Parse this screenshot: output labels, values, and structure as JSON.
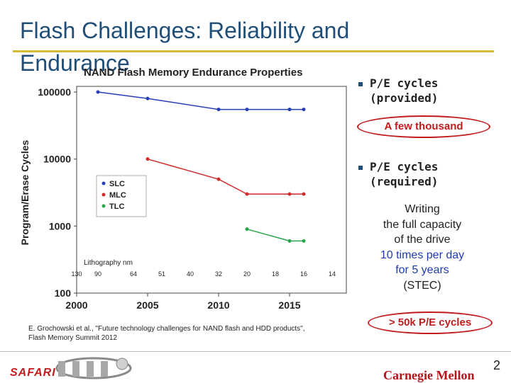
{
  "slide": {
    "title": "Flash Challenges: Reliability and Endurance",
    "page_number": "2"
  },
  "chart_data": {
    "type": "line",
    "title": "NAND Flash Memory Endurance Properties",
    "ylabel": "Program/Erase Cycles",
    "xlabel": "",
    "y_scale": "log",
    "ylim": [
      100,
      100000
    ],
    "xlim": [
      2000,
      2019
    ],
    "y_ticks": [
      "100",
      "1000",
      "10000",
      "100000"
    ],
    "x_ticks": [
      "2000",
      "2005",
      "2010",
      "2015"
    ],
    "lithography_label": "Lithography nm",
    "lithography_ticks": [
      {
        "x": 2000,
        "label": "130"
      },
      {
        "x": 2001.5,
        "label": "90"
      },
      {
        "x": 2004,
        "label": "64"
      },
      {
        "x": 2006,
        "label": "51"
      },
      {
        "x": 2008,
        "label": "40"
      },
      {
        "x": 2010,
        "label": "32"
      },
      {
        "x": 2012,
        "label": "20"
      },
      {
        "x": 2014,
        "label": "18"
      },
      {
        "x": 2016,
        "label": "16"
      },
      {
        "x": 2018,
        "label": "14"
      }
    ],
    "series": [
      {
        "name": "SLC",
        "color": "#2a3fb5",
        "x": [
          2001.5,
          2005,
          2010,
          2012,
          2015,
          2016
        ],
        "y": [
          100000,
          80000,
          55000,
          55000,
          55000,
          55000
        ]
      },
      {
        "name": "MLC",
        "color": "#d22b2b",
        "x": [
          2005,
          2010,
          2012,
          2015,
          2016
        ],
        "y": [
          10000,
          5000,
          3000,
          3000,
          3000
        ]
      },
      {
        "name": "TLC",
        "color": "#2aa64a",
        "x": [
          2012,
          2015,
          2016
        ],
        "y": [
          900,
          600,
          600
        ]
      }
    ],
    "legend_position": "left"
  },
  "right_panel": {
    "bullet1": "P/E cycles (provided)",
    "oval1": "A few thousand",
    "bullet2": "P/E cycles (required)",
    "writing_line1": "Writing",
    "writing_line2": "the full capacity",
    "writing_line3": "of the drive",
    "writing_line4": "10 times per day",
    "writing_line5": "for 5 years",
    "writing_line6": "(STEC)",
    "oval2": "> 50k P/E cycles"
  },
  "citation": {
    "line1": "E. Grochowski et al., \"Future technology challenges for NAND flash and HDD products\",",
    "line2": "Flash Memory Summit 2012"
  },
  "footer": {
    "safari": "SAFARI",
    "cmu": "Carnegie Mellon"
  },
  "colors": {
    "title": "#1f4e79",
    "accent_rule": "#d6b935",
    "highlight_red": "#c21d1d",
    "highlight_blue": "#1f3bb3"
  }
}
